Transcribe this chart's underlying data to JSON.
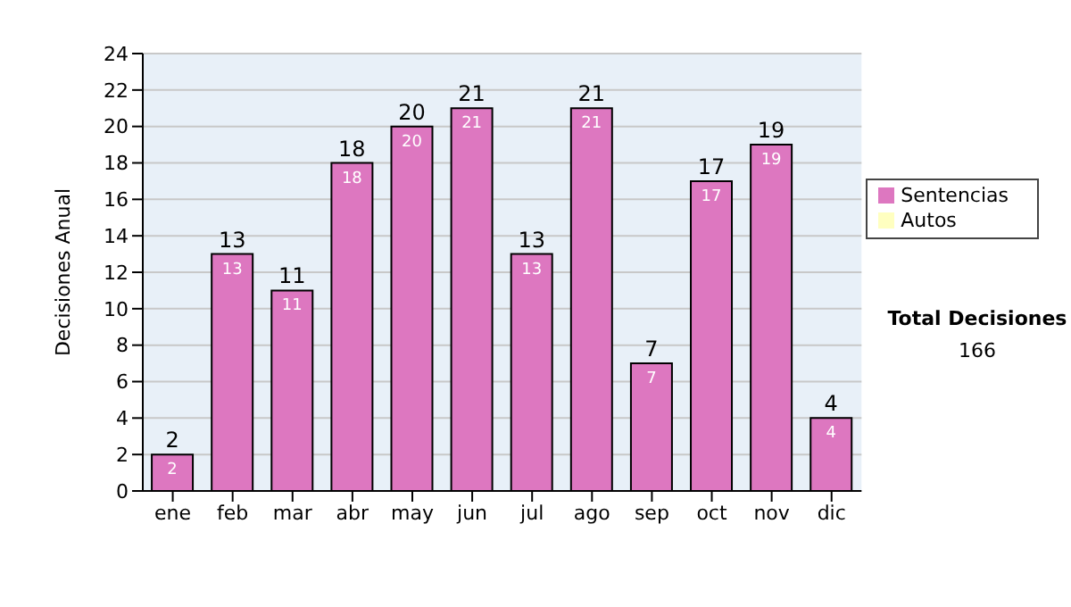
{
  "chart_data": {
    "type": "bar",
    "ylabel": "Decisiones Anual",
    "categories": [
      "ene",
      "feb",
      "mar",
      "abr",
      "may",
      "jun",
      "jul",
      "ago",
      "sep",
      "oct",
      "nov",
      "dic"
    ],
    "series": [
      {
        "name": "Sentencias",
        "color": "#dd77c0",
        "values": [
          2,
          13,
          11,
          18,
          20,
          21,
          13,
          21,
          7,
          17,
          19,
          4
        ],
        "value_labels": [
          "2",
          "13",
          "11",
          "18",
          "20",
          "21",
          "13",
          "21",
          "7",
          "17",
          "19",
          "4"
        ]
      },
      {
        "name": "Autos",
        "color": "#ffffc0",
        "values": [
          0,
          0,
          0,
          0,
          0,
          0,
          0,
          0,
          0,
          0,
          0,
          0
        ]
      }
    ],
    "stacked": true,
    "totals": [
      "2",
      "13",
      "11",
      "18",
      "20",
      "21",
      "13",
      "21",
      "7",
      "17",
      "19",
      "4"
    ],
    "ylim": [
      0,
      24
    ],
    "yticks": [
      0,
      2,
      4,
      6,
      8,
      10,
      12,
      14,
      16,
      18,
      20,
      22,
      24
    ],
    "grid": "y",
    "legend": "right",
    "annotations": [
      "Total Decisiones",
      "166"
    ]
  }
}
